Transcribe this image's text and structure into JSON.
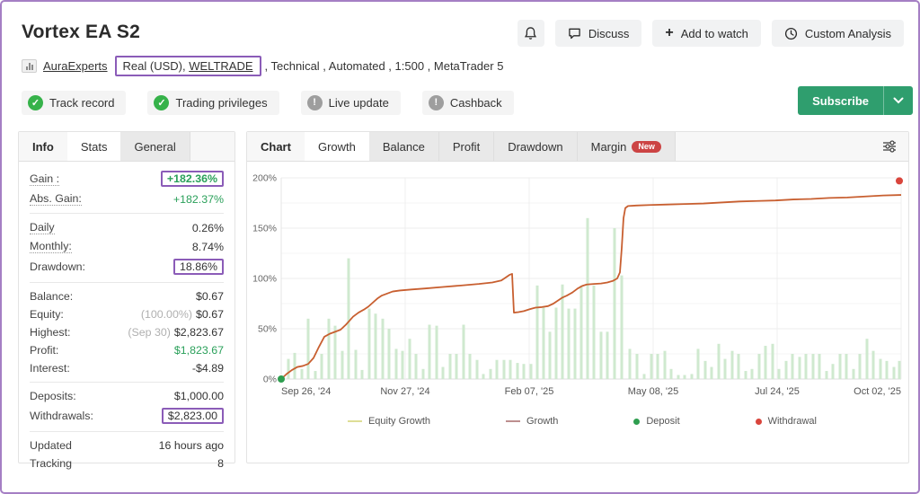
{
  "colors": {
    "accent_green": "#2aa05a",
    "subscribe_green": "#2f9e6e",
    "annotation_purple": "#8b5cb8",
    "page_border_purple": "#a57fc4",
    "badge_ok_green": "#36b24a",
    "badge_off_gray": "#9e9e9e",
    "new_badge_red": "#cc4444",
    "bar_green": "#cfe9cf",
    "line_orange": "#c85f30"
  },
  "header": {
    "title": "Vortex EA S2",
    "actions": {
      "discuss": "Discuss",
      "add_to_watch": "Add to watch",
      "custom_analysis": "Custom Analysis"
    },
    "meta": {
      "author": "AuraExperts",
      "account_prefix": "Real (USD), ",
      "broker": "WELTRADE",
      "rest": ", Technical , Automated , 1:500 , MetaTrader 5"
    },
    "badges": [
      {
        "label": "Track record",
        "status": "ok"
      },
      {
        "label": "Trading privileges",
        "status": "ok"
      },
      {
        "label": "Live update",
        "status": "off"
      },
      {
        "label": "Cashback",
        "status": "off"
      }
    ],
    "subscribe": {
      "label": "Subscribe"
    }
  },
  "stats_panel": {
    "tabs": [
      {
        "label": "Info",
        "style": "plain"
      },
      {
        "label": "Stats",
        "style": "active"
      },
      {
        "label": "General",
        "style": "idle"
      }
    ],
    "groups": [
      [
        {
          "label": "Gain :",
          "dotted": true,
          "value": "+182.36%",
          "cls": "green bold",
          "boxed": true
        },
        {
          "label": "Abs. Gain:",
          "dotted": true,
          "value": "+182.37%",
          "cls": "green"
        }
      ],
      [
        {
          "label": "Daily",
          "dotted": true,
          "value": "0.26%"
        },
        {
          "label": "Monthly:",
          "dotted": true,
          "value": "8.74%"
        },
        {
          "label": "Drawdown:",
          "value": "18.86%",
          "boxed": true
        }
      ],
      [
        {
          "label": "Balance:",
          "value": "$0.67"
        },
        {
          "label": "Equity:",
          "hint": "(100.00%)",
          "value": "$0.67"
        },
        {
          "label": "Highest:",
          "hint": "(Sep 30)",
          "value": "$2,823.67"
        },
        {
          "label": "Profit:",
          "value": "$1,823.67",
          "cls": "green"
        },
        {
          "label": "Interest:",
          "value": "-$4.89"
        }
      ],
      [
        {
          "label": "Deposits:",
          "value": "$1,000.00"
        },
        {
          "label": "Withdrawals:",
          "value": "$2,823.00",
          "boxed": true
        }
      ],
      [
        {
          "label": "Updated",
          "value": "16 hours ago"
        },
        {
          "label": "Tracking",
          "value": "8"
        }
      ]
    ]
  },
  "chart_panel": {
    "tabs": [
      {
        "label": "Chart",
        "style": "plain"
      },
      {
        "label": "Growth",
        "style": "active"
      },
      {
        "label": "Balance",
        "style": "idle"
      },
      {
        "label": "Profit",
        "style": "idle"
      },
      {
        "label": "Drawdown",
        "style": "idle"
      },
      {
        "label": "Margin",
        "style": "idle",
        "badge": "New"
      }
    ]
  },
  "chart_data": {
    "type": "line",
    "title": "Growth",
    "ylim": [
      0,
      200
    ],
    "y_ticks": [
      "0%",
      "50%",
      "100%",
      "150%",
      "200%"
    ],
    "x_ticks": [
      "Sep 26, '24",
      "Nov 27, '24",
      "Feb 07, '25",
      "May 08, '25",
      "Jul 24, '25",
      "Oct 02, '25"
    ],
    "grid": true,
    "axis_unit": "percent growth; x axis spans Sep 26 2024 to Oct 02 2025, positions below in 0-690 px of time axis",
    "series": [
      {
        "name": "Growth",
        "type": "line",
        "points": [
          [
            0,
            0
          ],
          [
            6,
            5
          ],
          [
            12,
            9
          ],
          [
            18,
            12
          ],
          [
            24,
            13
          ],
          [
            30,
            15
          ],
          [
            36,
            21
          ],
          [
            42,
            32
          ],
          [
            48,
            42
          ],
          [
            54,
            45
          ],
          [
            60,
            47
          ],
          [
            66,
            49
          ],
          [
            72,
            54
          ],
          [
            76,
            58
          ],
          [
            80,
            62
          ],
          [
            86,
            66
          ],
          [
            92,
            69
          ],
          [
            97,
            72
          ],
          [
            102,
            76
          ],
          [
            107,
            80
          ],
          [
            112,
            83
          ],
          [
            118,
            85
          ],
          [
            124,
            87
          ],
          [
            132,
            88
          ],
          [
            145,
            89
          ],
          [
            160,
            90
          ],
          [
            180,
            91.5
          ],
          [
            200,
            93
          ],
          [
            220,
            94.5
          ],
          [
            235,
            96
          ],
          [
            245,
            98
          ],
          [
            250,
            101
          ],
          [
            254,
            103.5
          ],
          [
            257,
            104.5
          ],
          [
            259,
            66
          ],
          [
            264,
            66.5
          ],
          [
            270,
            67.5
          ],
          [
            277,
            69.5
          ],
          [
            283,
            71
          ],
          [
            290,
            71.5
          ],
          [
            297,
            72.5
          ],
          [
            303,
            75
          ],
          [
            308,
            78
          ],
          [
            313,
            81
          ],
          [
            318,
            83
          ],
          [
            324,
            86
          ],
          [
            330,
            90
          ],
          [
            335,
            92.5
          ],
          [
            340,
            94
          ],
          [
            348,
            94.5
          ],
          [
            356,
            95
          ],
          [
            363,
            96
          ],
          [
            369,
            97.5
          ],
          [
            374,
            100
          ],
          [
            377,
            106
          ],
          [
            379,
            130
          ],
          [
            381,
            160
          ],
          [
            383,
            170
          ],
          [
            386,
            172
          ],
          [
            395,
            172.5
          ],
          [
            410,
            173
          ],
          [
            430,
            173.5
          ],
          [
            450,
            174
          ],
          [
            470,
            174.5
          ],
          [
            490,
            175.5
          ],
          [
            510,
            176.5
          ],
          [
            530,
            177
          ],
          [
            550,
            177.5
          ],
          [
            570,
            178.5
          ],
          [
            590,
            179
          ],
          [
            610,
            180
          ],
          [
            630,
            180.5
          ],
          [
            650,
            181.5
          ],
          [
            670,
            182.5
          ],
          [
            690,
            183
          ]
        ]
      },
      {
        "name": "Daily gain bars",
        "type": "bar",
        "bars": [
          [
            8,
            20
          ],
          [
            15,
            26
          ],
          [
            23,
            10
          ],
          [
            30,
            60
          ],
          [
            38,
            8
          ],
          [
            45,
            25
          ],
          [
            53,
            60
          ],
          [
            60,
            53
          ],
          [
            68,
            28
          ],
          [
            75,
            120
          ],
          [
            83,
            29
          ],
          [
            90,
            9
          ],
          [
            98,
            70
          ],
          [
            105,
            65
          ],
          [
            113,
            60
          ],
          [
            120,
            50
          ],
          [
            128,
            30
          ],
          [
            135,
            28
          ],
          [
            143,
            40
          ],
          [
            150,
            25
          ],
          [
            158,
            10
          ],
          [
            165,
            54
          ],
          [
            173,
            53
          ],
          [
            180,
            12
          ],
          [
            188,
            25
          ],
          [
            195,
            25
          ],
          [
            203,
            54
          ],
          [
            210,
            25
          ],
          [
            218,
            19
          ],
          [
            225,
            5
          ],
          [
            233,
            10
          ],
          [
            240,
            19
          ],
          [
            248,
            19
          ],
          [
            255,
            19
          ],
          [
            263,
            16
          ],
          [
            270,
            15
          ],
          [
            278,
            15
          ],
          [
            285,
            93
          ],
          [
            292,
            71
          ],
          [
            299,
            47
          ],
          [
            306,
            71
          ],
          [
            313,
            94
          ],
          [
            320,
            70
          ],
          [
            327,
            70
          ],
          [
            334,
            93
          ],
          [
            341,
            160
          ],
          [
            348,
            93
          ],
          [
            356,
            47
          ],
          [
            363,
            47
          ],
          [
            371,
            150
          ],
          [
            379,
            103
          ],
          [
            388,
            30
          ],
          [
            396,
            25
          ],
          [
            404,
            5
          ],
          [
            412,
            25
          ],
          [
            419,
            25
          ],
          [
            427,
            28
          ],
          [
            434,
            10
          ],
          [
            442,
            4
          ],
          [
            449,
            4
          ],
          [
            457,
            5
          ],
          [
            464,
            30
          ],
          [
            472,
            18
          ],
          [
            479,
            12
          ],
          [
            487,
            35
          ],
          [
            494,
            20
          ],
          [
            502,
            28
          ],
          [
            509,
            25
          ],
          [
            517,
            8
          ],
          [
            524,
            10
          ],
          [
            532,
            25
          ],
          [
            539,
            33
          ],
          [
            547,
            35
          ],
          [
            554,
            10
          ],
          [
            562,
            18
          ],
          [
            569,
            25
          ],
          [
            577,
            22
          ],
          [
            584,
            25
          ],
          [
            592,
            25
          ],
          [
            599,
            25
          ],
          [
            607,
            8
          ],
          [
            614,
            15
          ],
          [
            622,
            25
          ],
          [
            629,
            25
          ],
          [
            637,
            10
          ],
          [
            644,
            25
          ],
          [
            652,
            40
          ],
          [
            659,
            28
          ],
          [
            667,
            20
          ],
          [
            674,
            18
          ],
          [
            682,
            12
          ],
          [
            688,
            18
          ]
        ]
      }
    ],
    "markers": [
      {
        "type": "deposit",
        "x": 0,
        "y": 0
      },
      {
        "type": "withdrawal",
        "x": 688,
        "y": 197
      }
    ],
    "legend": [
      {
        "label": "Equity Growth",
        "swatch": "line",
        "color": "#dede96"
      },
      {
        "label": "Growth",
        "swatch": "line",
        "color": "#bd8f8f"
      },
      {
        "label": "Deposit",
        "swatch": "dot",
        "color": "#2e9e4f"
      },
      {
        "label": "Withdrawal",
        "swatch": "dot",
        "color": "#d9453c"
      }
    ],
    "legend_position": "bottom"
  }
}
